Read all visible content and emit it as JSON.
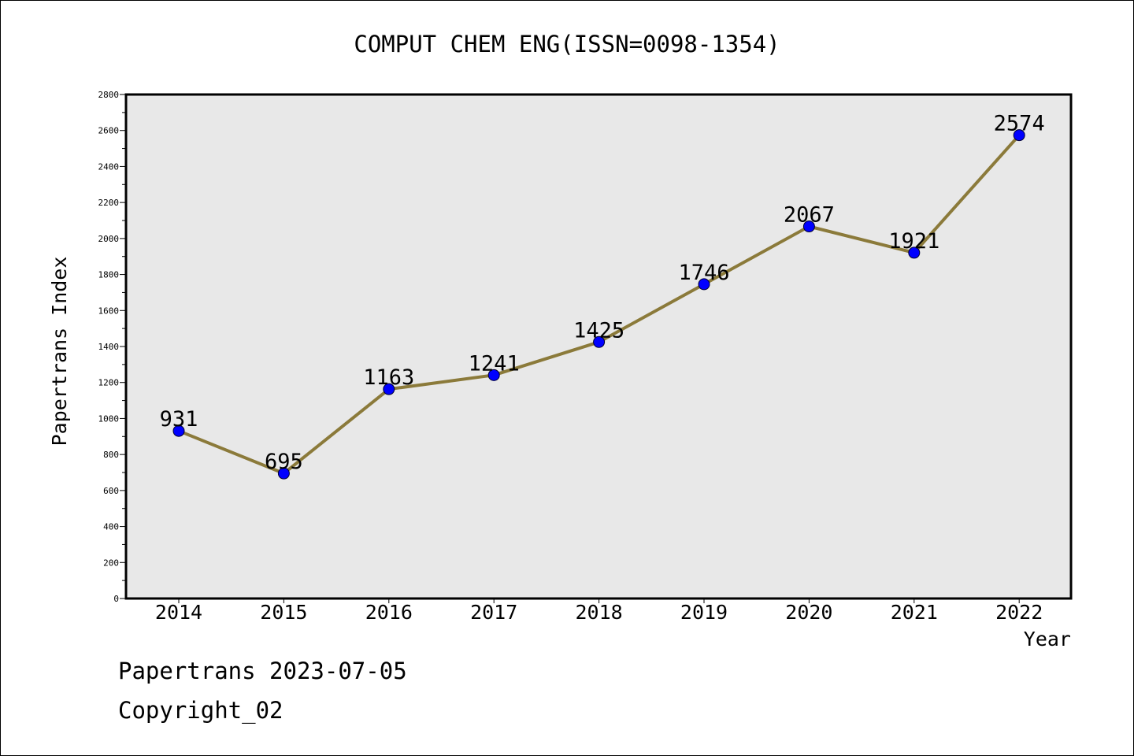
{
  "chart_data": {
    "type": "line",
    "title": "COMPUT CHEM ENG(ISSN=0098-1354)",
    "xlabel": "Year",
    "ylabel": "Papertrans Index",
    "categories": [
      "2014",
      "2015",
      "2016",
      "2017",
      "2018",
      "2019",
      "2020",
      "2021",
      "2022"
    ],
    "series": [
      {
        "values": [
          931,
          695,
          1163,
          1241,
          1425,
          1746,
          2067,
          1921,
          2574
        ]
      }
    ],
    "data_labels": [
      "931",
      "695",
      "1163",
      "1241",
      "1425",
      "1746",
      "2067",
      "1921",
      "2574"
    ],
    "yticks": [
      0,
      200,
      400,
      600,
      800,
      1000,
      1200,
      1400,
      1600,
      1800,
      2000,
      2200,
      2400,
      2600,
      2800
    ],
    "ylim": [
      0,
      2800
    ],
    "grid": false,
    "legend": "none",
    "colors": {
      "line": "#8b7a3a",
      "marker": "#0000ff",
      "plot_background": "#e8e8e8"
    }
  },
  "footer": {
    "line1": "Papertrans 2023-07-05",
    "line2": "Copyright_02"
  }
}
